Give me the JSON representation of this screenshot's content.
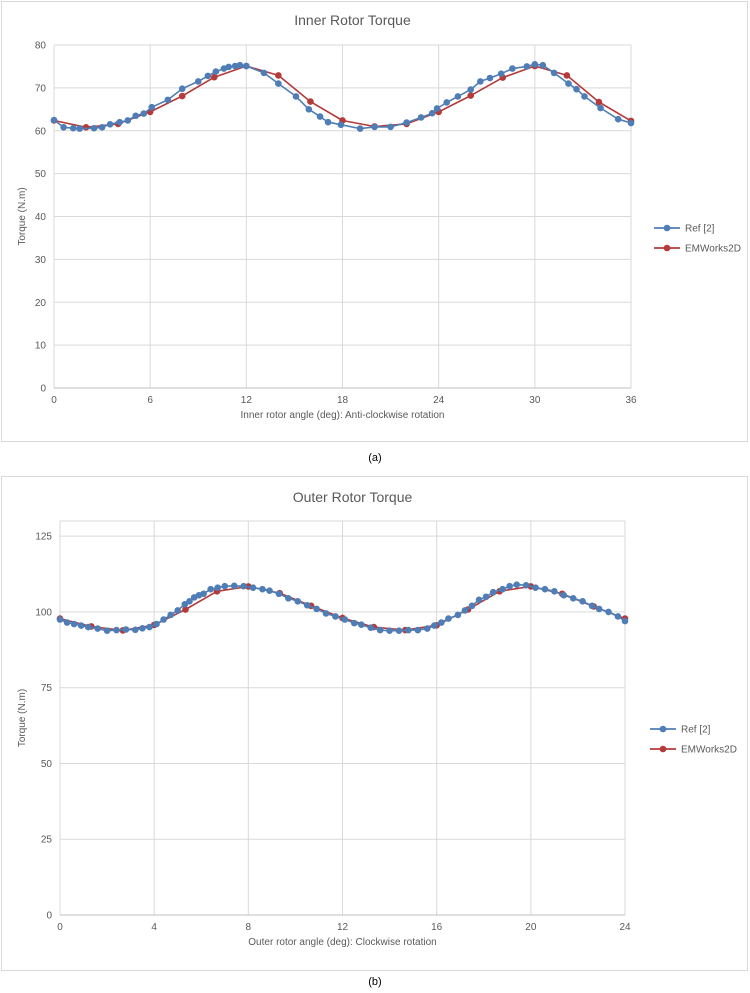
{
  "colors": {
    "ref": "#4f7db5",
    "emworks": "#b43b3a",
    "grid": "#d9d9d9",
    "axis": "#bfbfbf"
  },
  "captions": {
    "a": "(a)",
    "b": "(b)"
  },
  "chart_data": [
    {
      "type": "line",
      "title": "Inner Rotor Torque",
      "xlabel": "Inner rotor angle (deg): Anti-clockwise rotation",
      "ylabel": "Torque (N.m)",
      "xlim": [
        0,
        36
      ],
      "ylim": [
        0,
        80
      ],
      "xticks": [
        0,
        6,
        12,
        18,
        24,
        30,
        36
      ],
      "yticks": [
        0,
        10,
        20,
        30,
        40,
        50,
        60,
        70,
        80
      ],
      "grid": "vertical and horizontal",
      "legend": "right",
      "series": [
        {
          "name": "Ref [2]",
          "color": "#4f7db5",
          "x": [
            0,
            0.6,
            1.2,
            1.6,
            2.5,
            3,
            3.5,
            4.1,
            4.6,
            5.1,
            5.6,
            6.1,
            7.1,
            8.0,
            9.0,
            9.6,
            10.1,
            10.6,
            10.9,
            11.3,
            11.6,
            12.0,
            13.1,
            14.0,
            15.1,
            15.9,
            16.6,
            17.1,
            17.9,
            19.1,
            20.0,
            21.0,
            22.0,
            22.9,
            23.6,
            23.9,
            24.5,
            25.2,
            26.0,
            26.6,
            27.2,
            27.9,
            28.6,
            29.5,
            30.0,
            30.5,
            31.2,
            32.1,
            32.6,
            33.1,
            34.1,
            35.2,
            36.0
          ],
          "y": [
            62.5,
            60.8,
            60.6,
            60.5,
            60.6,
            60.8,
            61.5,
            62.0,
            62.4,
            63.5,
            64.0,
            65.5,
            67.2,
            69.8,
            71.5,
            72.8,
            73.8,
            74.5,
            74.9,
            75.1,
            75.3,
            75.1,
            73.5,
            71.0,
            68.0,
            65.0,
            63.3,
            62.0,
            61.4,
            60.5,
            60.9,
            60.9,
            61.9,
            63.1,
            64.1,
            65.2,
            66.6,
            68.0,
            69.6,
            71.5,
            72.3,
            73.3,
            74.5,
            75.0,
            75.5,
            75.3,
            73.5,
            71.0,
            69.7,
            68.0,
            65.3,
            62.7,
            61.8
          ]
        },
        {
          "name": "EMWorks2D",
          "color": "#b43b3a",
          "x": [
            0,
            2,
            4,
            6,
            8,
            10,
            12,
            14,
            16,
            18,
            20,
            22,
            24,
            26,
            28,
            30,
            32,
            34,
            36
          ],
          "y": [
            62.4,
            60.8,
            61.6,
            64.4,
            68.1,
            72.5,
            75.1,
            72.9,
            66.8,
            62.4,
            61.0,
            61.6,
            64.4,
            68.2,
            72.4,
            75.1,
            72.9,
            66.7,
            62.3
          ]
        }
      ]
    },
    {
      "type": "line",
      "title": "Outer Rotor Torque",
      "xlabel": "Outer rotor angle (deg): Clockwise rotation",
      "ylabel": "Torque (N.m)",
      "xlim": [
        0,
        24
      ],
      "ylim": [
        0,
        130
      ],
      "xticks": [
        0,
        4,
        8,
        12,
        16,
        20,
        24
      ],
      "yticks": [
        0,
        25,
        50,
        75,
        100,
        125
      ],
      "grid": "vertical and horizontal",
      "legend": "right",
      "series": [
        {
          "name": "Ref [2]",
          "color": "#4f7db5",
          "x": [
            0,
            0.3,
            0.6,
            0.9,
            1.2,
            1.6,
            2.0,
            2.4,
            2.8,
            3.2,
            3.5,
            3.8,
            4.1,
            4.4,
            4.7,
            5.0,
            5.3,
            5.5,
            5.7,
            5.9,
            6.1,
            6.4,
            6.7,
            7.0,
            7.4,
            7.8,
            8.2,
            8.6,
            8.9,
            9.3,
            9.7,
            10.1,
            10.5,
            10.9,
            11.3,
            11.7,
            12.1,
            12.5,
            12.8,
            13.2,
            13.6,
            14.0,
            14.4,
            14.8,
            15.2,
            15.6,
            15.9,
            16.2,
            16.5,
            16.9,
            17.2,
            17.5,
            17.8,
            18.1,
            18.4,
            18.8,
            19.1,
            19.4,
            19.8,
            20.2,
            20.6,
            21.0,
            21.4,
            21.8,
            22.2,
            22.6,
            22.9,
            23.3,
            23.7,
            24.0
          ],
          "y": [
            97.5,
            96.5,
            96.0,
            95.5,
            95.0,
            94.5,
            93.8,
            94.0,
            94.2,
            94.1,
            94.6,
            95.0,
            96.0,
            97.5,
            99.0,
            100.5,
            102.5,
            103.5,
            104.8,
            105.5,
            106.0,
            107.5,
            108.0,
            108.5,
            108.6,
            108.5,
            108.0,
            107.5,
            107.0,
            106.0,
            104.5,
            103.5,
            102.2,
            101.0,
            99.5,
            98.5,
            97.5,
            96.3,
            95.8,
            94.8,
            94.0,
            93.8,
            93.8,
            94.0,
            94.0,
            94.5,
            95.5,
            96.5,
            97.8,
            99.0,
            100.5,
            102.0,
            104.0,
            105.0,
            106.5,
            107.5,
            108.5,
            109.0,
            108.8,
            108.0,
            107.5,
            106.8,
            105.5,
            104.5,
            103.5,
            102.0,
            101.0,
            100.0,
            98.5,
            97.0
          ]
        },
        {
          "name": "EMWorks2D",
          "color": "#b43b3a",
          "x": [
            0,
            1.33,
            2.67,
            4.0,
            5.33,
            6.67,
            8.0,
            9.33,
            10.67,
            12.0,
            13.33,
            14.67,
            16.0,
            17.33,
            18.67,
            20.0,
            21.33,
            22.67,
            24.0
          ],
          "y": [
            97.8,
            95.2,
            93.9,
            95.7,
            100.8,
            106.8,
            108.4,
            106.2,
            102.0,
            98.0,
            95.0,
            94.0,
            95.6,
            100.8,
            106.8,
            108.4,
            106.0,
            101.8,
            97.8
          ]
        }
      ]
    }
  ]
}
